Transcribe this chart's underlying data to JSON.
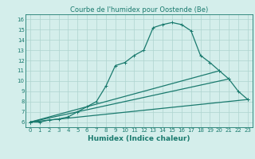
{
  "title": "Courbe de l'humidex pour Oostende (Be)",
  "xlabel": "Humidex (Indice chaleur)",
  "xlim": [
    -0.5,
    23.5
  ],
  "ylim": [
    5.5,
    16.5
  ],
  "xticks": [
    0,
    1,
    2,
    3,
    4,
    5,
    6,
    7,
    8,
    9,
    10,
    11,
    12,
    13,
    14,
    15,
    16,
    17,
    18,
    19,
    20,
    21,
    22,
    23
  ],
  "yticks": [
    6,
    7,
    8,
    9,
    10,
    11,
    12,
    13,
    14,
    15,
    16
  ],
  "bg_color": "#d4eeeb",
  "grid_color": "#aed4cf",
  "line_color": "#1a7a6e",
  "lines": [
    {
      "x": [
        0,
        1,
        2,
        3,
        4,
        5,
        6,
        7,
        8,
        9,
        10,
        11,
        12,
        13,
        14,
        15,
        16,
        17,
        18,
        19,
        20,
        21,
        22,
        23
      ],
      "y": [
        6,
        6,
        6.2,
        6.3,
        6.5,
        7.0,
        7.5,
        8.0,
        9.5,
        11.5,
        11.8,
        12.5,
        13.0,
        15.2,
        15.5,
        15.7,
        15.5,
        14.9,
        12.5,
        11.8,
        11.0,
        10.2,
        9.0,
        8.2
      ]
    },
    {
      "x": [
        0,
        23
      ],
      "y": [
        6,
        8.2
      ]
    },
    {
      "x": [
        0,
        20
      ],
      "y": [
        6,
        11.0
      ]
    },
    {
      "x": [
        0,
        21
      ],
      "y": [
        6,
        10.2
      ]
    }
  ],
  "marker": "+",
  "markersize": 3.5,
  "linewidth": 0.9,
  "title_fontsize": 6,
  "tick_fontsize": 5,
  "label_fontsize": 6.5
}
